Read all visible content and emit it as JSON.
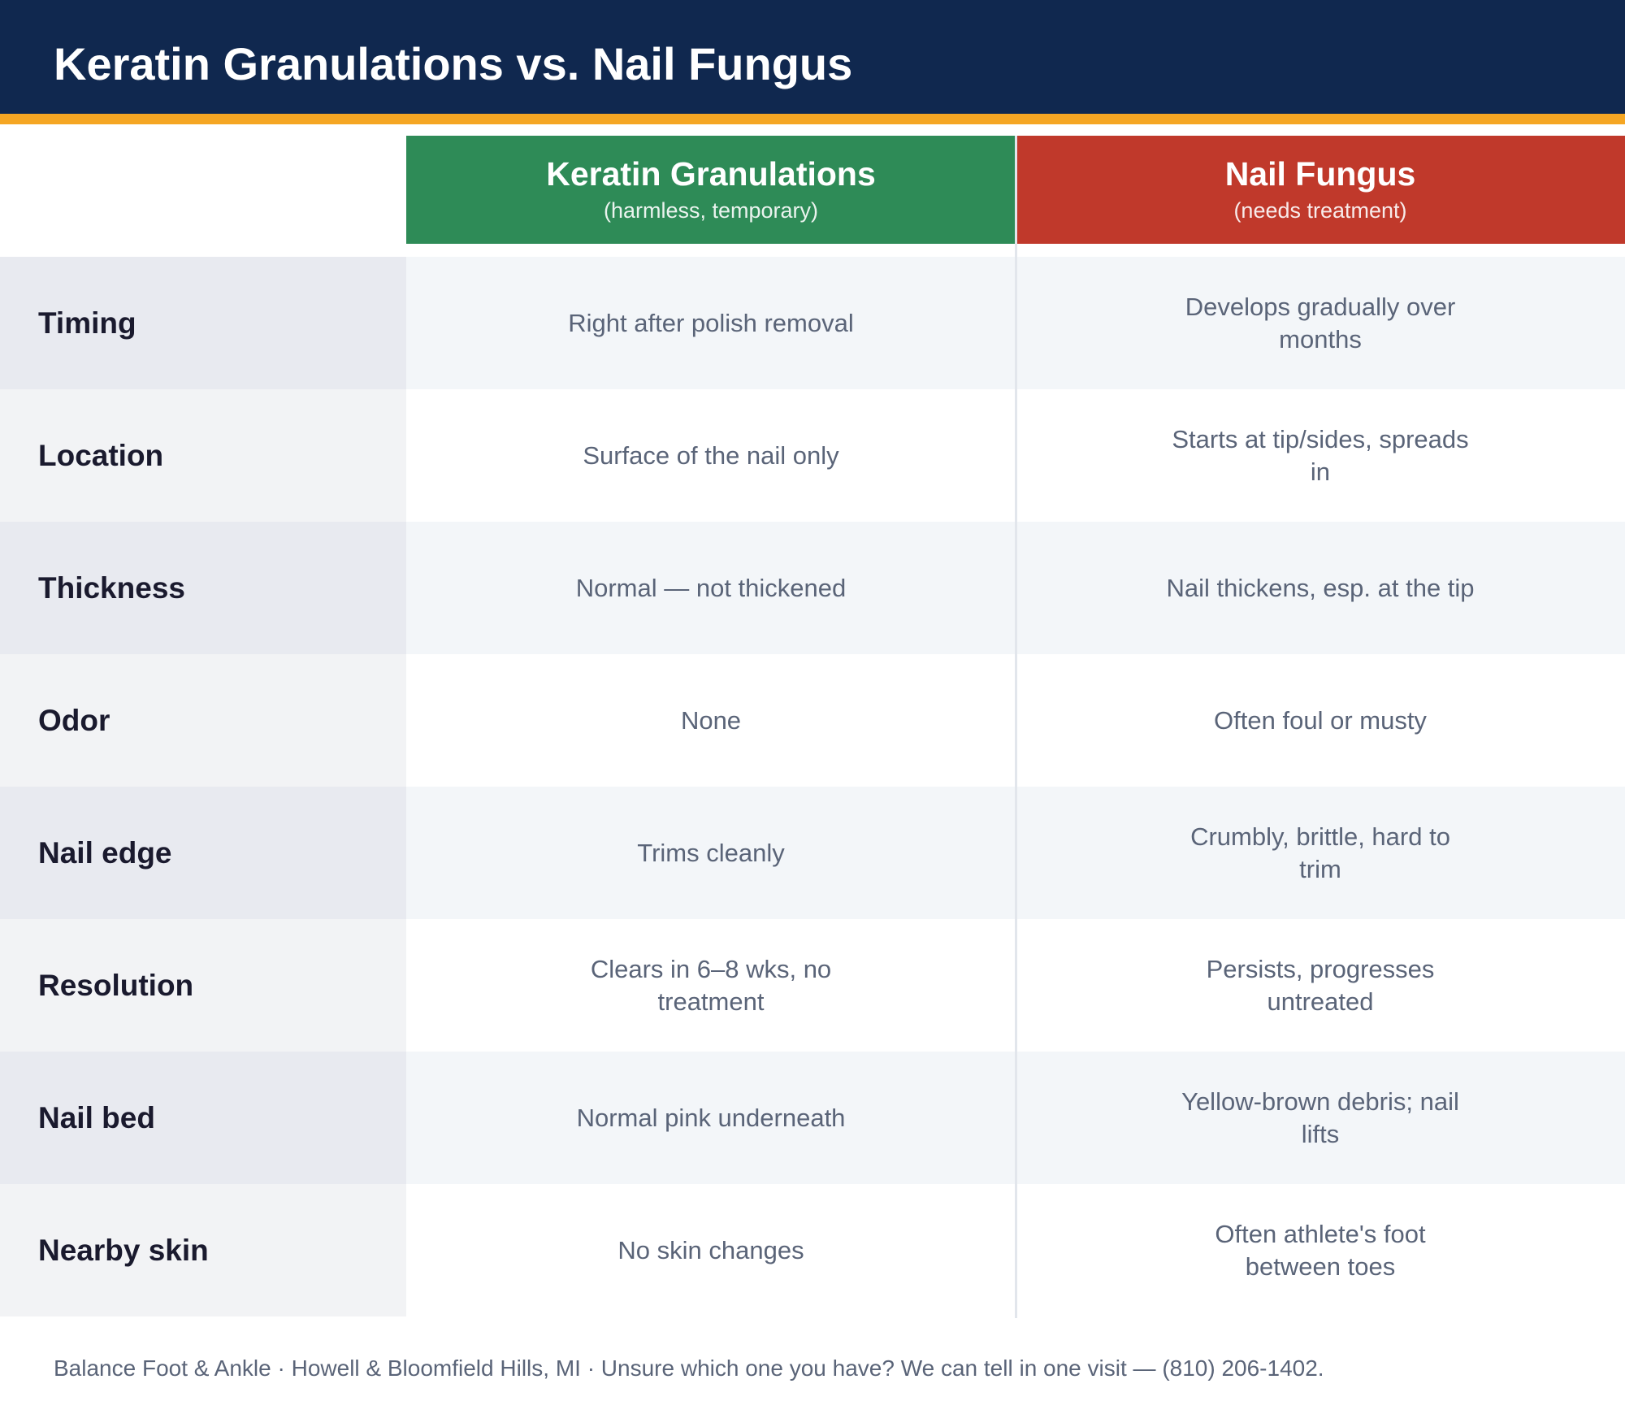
{
  "header": {
    "title": "Keratin Granulations vs. Nail Fungus"
  },
  "columns": [
    {
      "title": "Keratin Granulations",
      "subtitle": "(harmless, temporary)"
    },
    {
      "title": "Nail Fungus",
      "subtitle": "(needs treatment)"
    }
  ],
  "rows": [
    {
      "label": "Timing",
      "cells": [
        "Right after polish removal",
        "Develops gradually over months"
      ]
    },
    {
      "label": "Location",
      "cells": [
        "Surface of the nail only",
        "Starts at tip/sides, spreads in"
      ]
    },
    {
      "label": "Thickness",
      "cells": [
        "Normal — not thickened",
        "Nail thickens, esp. at the tip"
      ]
    },
    {
      "label": "Odor",
      "cells": [
        "None",
        "Often foul or musty"
      ]
    },
    {
      "label": "Nail edge",
      "cells": [
        "Trims cleanly",
        "Crumbly, brittle, hard to trim"
      ]
    },
    {
      "label": "Resolution",
      "cells": [
        "Clears in 6–8 wks, no treatment",
        "Persists, progresses untreated"
      ]
    },
    {
      "label": "Nail bed",
      "cells": [
        "Normal pink underneath",
        "Yellow-brown debris; nail lifts"
      ]
    },
    {
      "label": "Nearby skin",
      "cells": [
        "No skin changes",
        "Often athlete's foot between toes"
      ]
    }
  ],
  "footer": "Balance Foot & Ankle · Howell & Bloomfield Hills, MI · Unsure which one you have? We can tell in one visit — (810) 206-1402."
}
